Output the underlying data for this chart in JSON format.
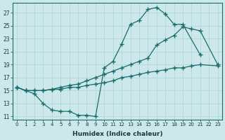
{
  "xlabel": "Humidex (Indice chaleur)",
  "background_color": "#cce8ea",
  "grid_color": "#b0d8da",
  "line_color": "#1a6b6b",
  "xlim": [
    -0.5,
    23.5
  ],
  "ylim": [
    10.5,
    28.5
  ],
  "yticks": [
    11,
    13,
    15,
    17,
    19,
    21,
    23,
    25,
    27
  ],
  "xticks": [
    0,
    1,
    2,
    3,
    4,
    5,
    6,
    7,
    8,
    9,
    10,
    11,
    12,
    13,
    14,
    15,
    16,
    17,
    18,
    19,
    20,
    21,
    22,
    23
  ],
  "line1_x": [
    0,
    1,
    2,
    3,
    4,
    5,
    6,
    7,
    8,
    9,
    10,
    11,
    12,
    13,
    14,
    15,
    16,
    17,
    18,
    19,
    21
  ],
  "line1_y": [
    15.5,
    15.0,
    14.5,
    13.0,
    12.0,
    11.8,
    11.8,
    11.2,
    11.2,
    11.0,
    18.5,
    19.5,
    22.2,
    25.2,
    25.8,
    27.5,
    27.8,
    26.8,
    25.2,
    25.2,
    20.5
  ],
  "line2_x": [
    0,
    1,
    2,
    3,
    4,
    5,
    6,
    7,
    8,
    9,
    10,
    11,
    12,
    13,
    14,
    15,
    16,
    17,
    18,
    19,
    20,
    21,
    23
  ],
  "line2_y": [
    15.5,
    15.0,
    15.0,
    15.0,
    15.2,
    15.5,
    15.8,
    16.0,
    16.5,
    17.0,
    17.5,
    18.0,
    18.5,
    19.0,
    19.5,
    20.0,
    22.0,
    22.8,
    23.5,
    24.8,
    24.5,
    24.2,
    19.0
  ],
  "line3_x": [
    0,
    1,
    2,
    3,
    4,
    5,
    6,
    7,
    8,
    9,
    10,
    11,
    12,
    13,
    14,
    15,
    16,
    17,
    18,
    19,
    20,
    21,
    23
  ],
  "line3_y": [
    15.5,
    15.0,
    15.0,
    15.0,
    15.2,
    15.2,
    15.5,
    15.5,
    15.8,
    16.0,
    16.2,
    16.5,
    17.0,
    17.2,
    17.5,
    17.8,
    18.0,
    18.2,
    18.5,
    18.5,
    18.8,
    19.0,
    18.8
  ]
}
